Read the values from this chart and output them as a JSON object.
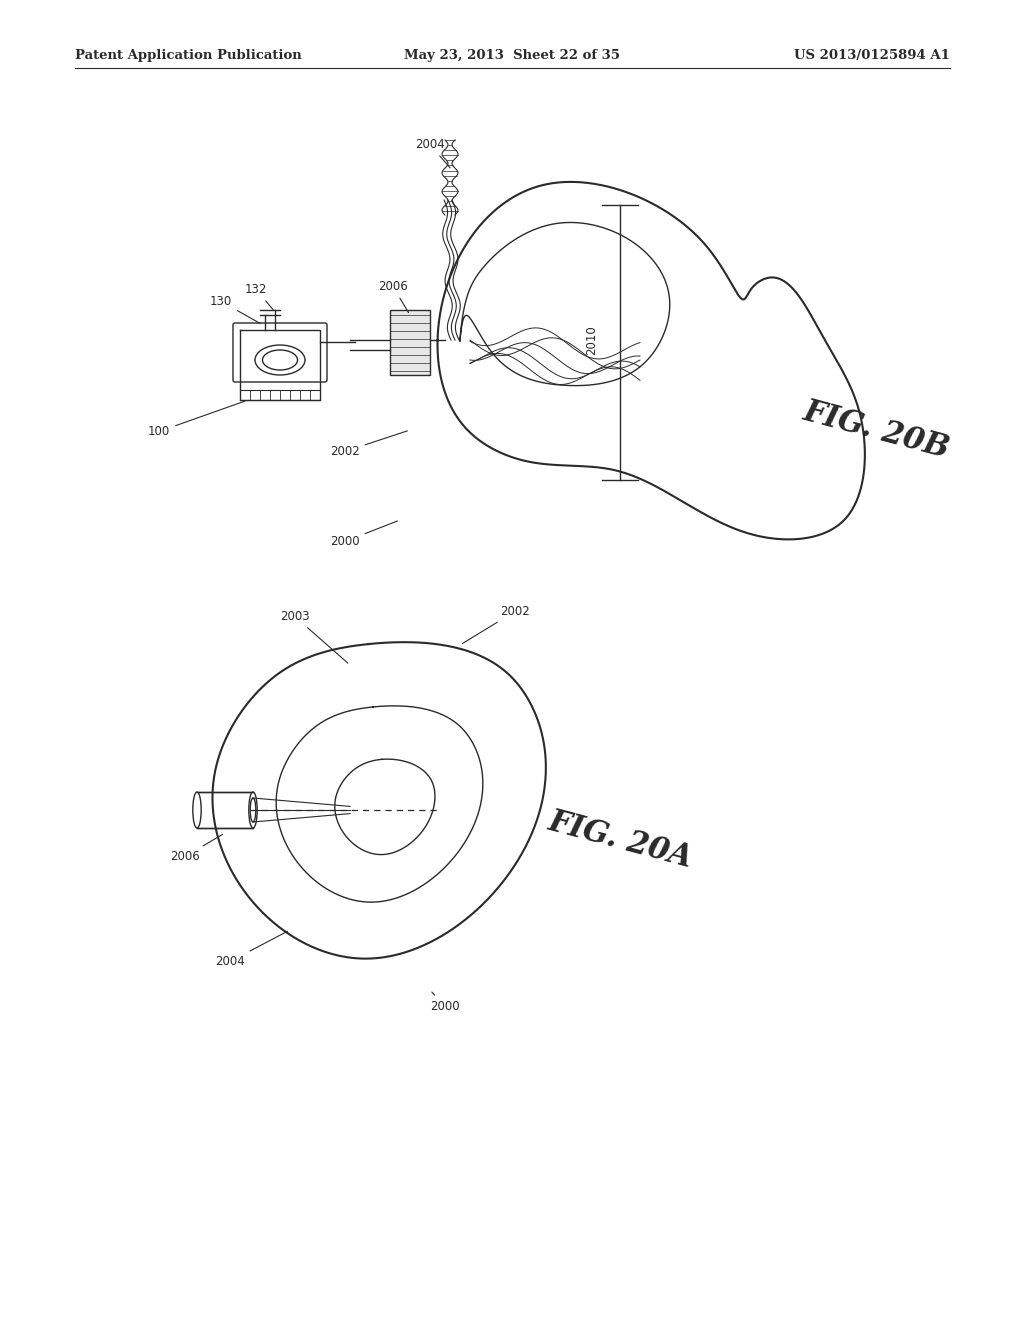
{
  "header_left": "Patent Application Publication",
  "header_mid": "May 23, 2013  Sheet 22 of 35",
  "header_right": "US 2013/0125894 A1",
  "bg_color": "#ffffff",
  "line_color": "#2a2a2a",
  "fig_label_20B": "FIG. 20B",
  "fig_label_20A": "FIG. 20A"
}
